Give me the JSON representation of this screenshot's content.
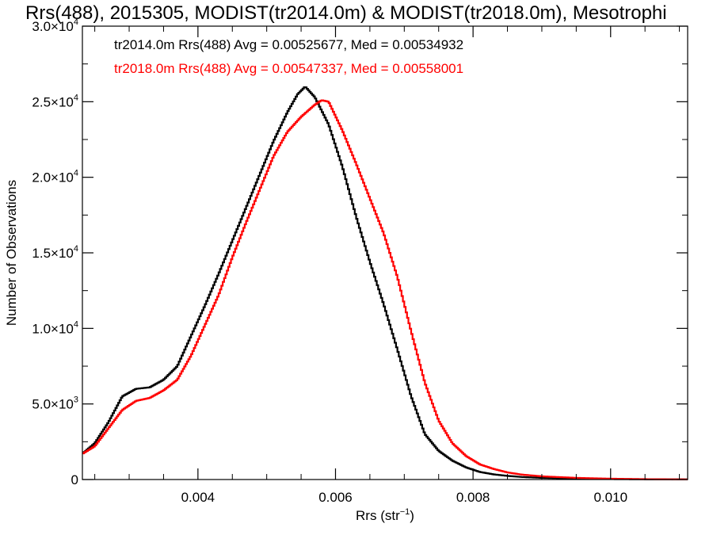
{
  "chart_data": {
    "type": "line",
    "title": "Rrs(488), 2015305, MODIST(tr2014.0m) & MODIST(tr2018.0m), Mesotrophi",
    "xlabel_base": "Rrs (str",
    "xlabel_exp": "−1",
    "xlabel_close": ")",
    "ylabel": "Number of Observations",
    "xlim": [
      0.00232,
      0.01112
    ],
    "ylim": [
      0,
      30000
    ],
    "x_ticks": [
      0.004,
      0.006,
      0.008,
      0.01
    ],
    "x_tick_labels": [
      "0.004",
      "0.006",
      "0.008",
      "0.010"
    ],
    "y_ticks": [
      0,
      5000,
      10000,
      15000,
      20000,
      25000,
      30000
    ],
    "y_tick_labels": [
      {
        "mant": "0",
        "exp": ""
      },
      {
        "mant": "5.0×10",
        "exp": "3"
      },
      {
        "mant": "1.0×10",
        "exp": "4"
      },
      {
        "mant": "1.5×10",
        "exp": "4"
      },
      {
        "mant": "2.0×10",
        "exp": "4"
      },
      {
        "mant": "2.5×10",
        "exp": "4"
      },
      {
        "mant": "3.0×10",
        "exp": "4"
      }
    ],
    "annotations": [
      {
        "text": "tr2014.0m Rrs(488) Avg = 0.00525677, Med = 0.00534932",
        "color": "#000000"
      },
      {
        "text": "tr2018.0m Rrs(488) Avg = 0.00547337, Med = 0.00558001",
        "color": "#ff0000"
      }
    ],
    "series": [
      {
        "color": "#000000",
        "x": [
          0.00232,
          0.0025,
          0.0027,
          0.0029,
          0.0031,
          0.0033,
          0.0035,
          0.0037,
          0.0039,
          0.0041,
          0.0043,
          0.0045,
          0.0047,
          0.0049,
          0.0051,
          0.0053,
          0.00545,
          0.00556,
          0.0057,
          0.0059,
          0.0061,
          0.0063,
          0.0065,
          0.0067,
          0.0069,
          0.0071,
          0.0073,
          0.0075,
          0.0077,
          0.0079,
          0.0081,
          0.0083,
          0.0085,
          0.0087,
          0.009,
          0.0095,
          0.01,
          0.0105,
          0.01112
        ],
        "y": [
          1700,
          2400,
          3800,
          5500,
          6000,
          6100,
          6600,
          7500,
          9500,
          11500,
          13600,
          15800,
          18000,
          20200,
          22400,
          24300,
          25500,
          26000,
          25300,
          23500,
          20700,
          17400,
          14400,
          11600,
          8600,
          5500,
          3000,
          1900,
          1250,
          800,
          500,
          340,
          240,
          170,
          110,
          60,
          30,
          15,
          5
        ]
      },
      {
        "color": "#ff0000",
        "x": [
          0.00232,
          0.0025,
          0.0027,
          0.0029,
          0.0031,
          0.0033,
          0.0035,
          0.0037,
          0.0039,
          0.0041,
          0.0043,
          0.0045,
          0.0047,
          0.0049,
          0.0051,
          0.0053,
          0.0055,
          0.0057,
          0.0058,
          0.0059,
          0.0061,
          0.0063,
          0.0065,
          0.0067,
          0.0069,
          0.0071,
          0.0073,
          0.0075,
          0.0077,
          0.0079,
          0.0081,
          0.0083,
          0.0085,
          0.0087,
          0.009,
          0.0095,
          0.01,
          0.0105,
          0.01112
        ],
        "y": [
          1700,
          2200,
          3400,
          4600,
          5200,
          5400,
          5900,
          6600,
          8200,
          10200,
          12200,
          14700,
          17000,
          19200,
          21400,
          23000,
          24000,
          24800,
          25100,
          25000,
          23100,
          20900,
          18600,
          16300,
          13400,
          9800,
          6400,
          3900,
          2400,
          1550,
          1000,
          700,
          470,
          330,
          210,
          110,
          55,
          25,
          10
        ]
      }
    ]
  }
}
